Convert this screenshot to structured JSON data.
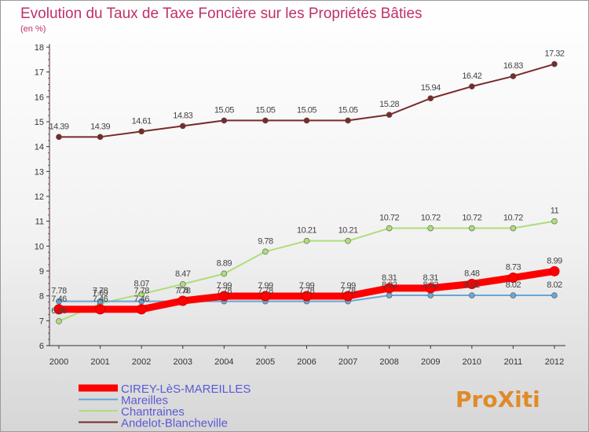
{
  "chart_data": {
    "type": "line",
    "title": "Evolution du Taux de Taxe Foncière sur les Propriétés Bâties",
    "ylabel": "(en %)",
    "xlabel": "",
    "x": [
      "2000",
      "2001",
      "2002",
      "2003",
      "2004",
      "2005",
      "2006",
      "2007",
      "2008",
      "2009",
      "2010",
      "2011",
      "2012"
    ],
    "ylim": [
      6,
      18
    ],
    "yticks": [
      "6",
      "7",
      "8",
      "9",
      "10",
      "11",
      "12",
      "13",
      "14",
      "15",
      "16",
      "17",
      "18"
    ],
    "grid": false,
    "legend_position": "bottom-left",
    "series": [
      {
        "name": "CIREY-LèS-MAREILLES",
        "color": "#ff0000",
        "values": [
          7.46,
          7.46,
          7.46,
          7.8,
          7.99,
          7.99,
          7.99,
          7.99,
          8.31,
          8.31,
          8.48,
          8.73,
          8.99
        ],
        "labels": [
          "7.46",
          "7.46",
          "7.46",
          "7.8",
          "7.99",
          "7.99",
          "7.99",
          "7.99",
          "8.31",
          "8.31",
          "8.48",
          "8.73",
          "8.99"
        ]
      },
      {
        "name": "Mareilles",
        "color": "#6aa6d6",
        "values": [
          7.78,
          7.78,
          7.78,
          7.78,
          7.78,
          7.78,
          7.78,
          7.78,
          8.02,
          8.02,
          8.02,
          8.02,
          8.02
        ],
        "labels": [
          "7.78",
          "7.78",
          "7.78",
          "7.78",
          "7.78",
          "7.78",
          "7.78",
          "7.78",
          "8.02",
          "8.02",
          "8.02",
          "8.02",
          "8.02"
        ]
      },
      {
        "name": "Chantraines",
        "color": "#aedd7a",
        "values": [
          6.98,
          7.69,
          8.07,
          8.47,
          8.89,
          9.78,
          10.21,
          10.21,
          10.72,
          10.72,
          10.72,
          10.72,
          11
        ],
        "labels": [
          "6.98",
          "7.69",
          "8.07",
          "8.47",
          "8.89",
          "9.78",
          "10.21",
          "10.21",
          "10.72",
          "10.72",
          "10.72",
          "10.72",
          "11"
        ]
      },
      {
        "name": "Andelot-Blancheville",
        "color": "#7a2a2a",
        "values": [
          14.39,
          14.39,
          14.61,
          14.83,
          15.05,
          15.05,
          15.05,
          15.05,
          15.28,
          15.94,
          16.42,
          16.83,
          17.32
        ],
        "labels": [
          "14.39",
          "14.39",
          "14.61",
          "14.83",
          "15.05",
          "15.05",
          "15.05",
          "15.05",
          "15.28",
          "15.94",
          "16.42",
          "16.83",
          "17.32"
        ]
      }
    ]
  },
  "logo": {
    "text": "ProXiti"
  },
  "colors": {
    "title": "#c0306a",
    "axis": "#333333",
    "background_top": "#ffffff",
    "background_bottom": "#d8d8d8"
  }
}
